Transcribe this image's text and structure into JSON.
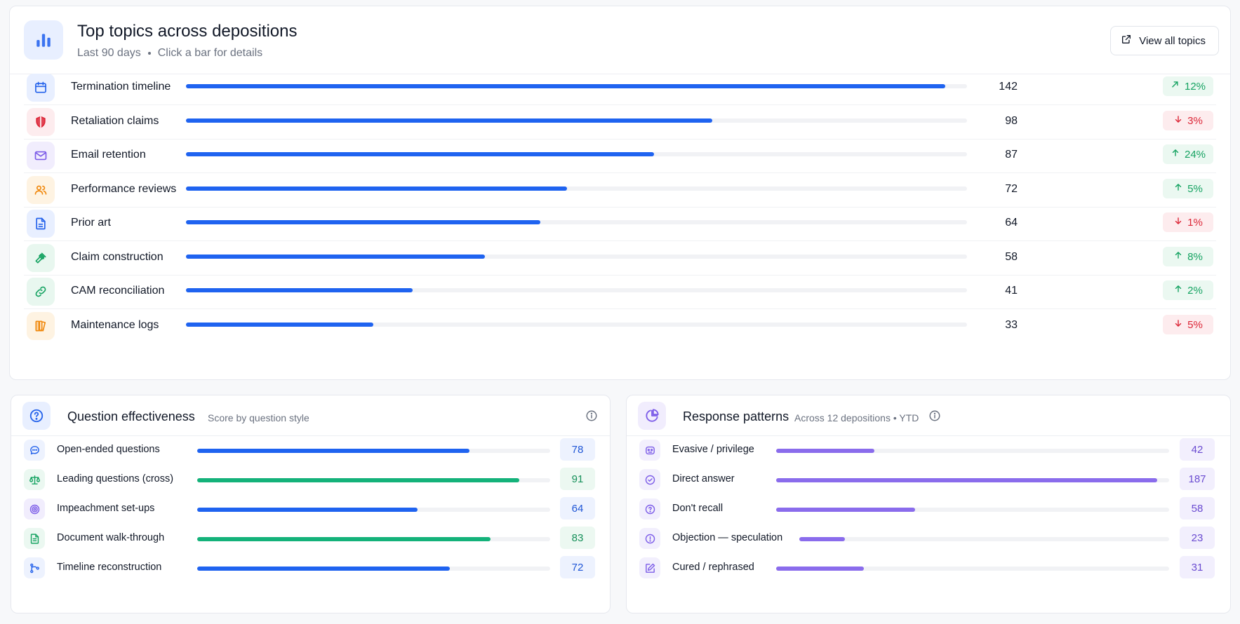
{
  "top": {
    "title": "Top topics across depositions",
    "period": "Last 90 days",
    "hint": "Click a bar for details",
    "view_all_label": "View all topics",
    "icon": "bar-chart-icon",
    "max_value": 142,
    "topics": [
      {
        "label": "Termination timeline",
        "count": 142,
        "trend": "12%",
        "direction": "up",
        "icon": "calendar-icon",
        "icon_color": "#2563eb",
        "icon_bg": "#e8efff",
        "bar_fraction": 0.972
      },
      {
        "label": "Retaliation claims",
        "count": 98,
        "trend": "3%",
        "direction": "down",
        "icon": "shield-icon",
        "icon_color": "#dc2637",
        "icon_bg": "#fdecee",
        "bar_fraction": 0.674
      },
      {
        "label": "Email retention",
        "count": 87,
        "trend": "24%",
        "direction": "up",
        "icon": "mail-icon",
        "icon_color": "#7c5ce8",
        "icon_bg": "#f1edfd",
        "bar_fraction": 0.599
      },
      {
        "label": "Performance reviews",
        "count": 72,
        "trend": "5%",
        "direction": "up",
        "icon": "users-icon",
        "icon_color": "#f0880c",
        "icon_bg": "#fef3e2",
        "bar_fraction": 0.488
      },
      {
        "label": "Prior art",
        "count": 64,
        "trend": "1%",
        "direction": "down",
        "icon": "document-icon",
        "icon_color": "#2563eb",
        "icon_bg": "#e8efff",
        "bar_fraction": 0.454
      },
      {
        "label": "Claim construction",
        "count": 58,
        "trend": "8%",
        "direction": "up",
        "icon": "gavel-icon",
        "icon_color": "#16a362",
        "icon_bg": "#e8f7ef",
        "bar_fraction": 0.383
      },
      {
        "label": "CAM reconciliation",
        "count": 41,
        "trend": "2%",
        "direction": "up",
        "icon": "link-icon",
        "icon_color": "#16a362",
        "icon_bg": "#e8f7ef",
        "bar_fraction": 0.29
      },
      {
        "label": "Maintenance logs",
        "count": 33,
        "trend": "5%",
        "direction": "down",
        "icon": "book-icon",
        "icon_color": "#f0880c",
        "icon_bg": "#fef3e2",
        "bar_fraction": 0.24
      }
    ]
  },
  "question_effectiveness": {
    "title": "Question effectiveness",
    "subtitle": "Score by question style",
    "icon": "question-circle-icon",
    "items": [
      {
        "label": "Open-ended questions",
        "value": "78",
        "score": 78,
        "color": "#1f63f0",
        "style": "blue",
        "icon": "chat-bubble-icon",
        "bar_fraction": 0.772
      },
      {
        "label": "Leading questions (cross)",
        "value": "91",
        "score": 91,
        "color": "#14b27a",
        "style": "green",
        "icon": "scale-icon",
        "bar_fraction": 0.913
      },
      {
        "label": "Impeachment set-ups",
        "value": "64",
        "score": 64,
        "color": "#1f63f0",
        "style": "blue",
        "icon": "target-icon",
        "bar_fraction": 0.625
      },
      {
        "label": "Document walk-through",
        "value": "83",
        "score": 83,
        "color": "#14b27a",
        "style": "green",
        "icon": "file-text-icon",
        "bar_fraction": 0.831
      },
      {
        "label": "Timeline reconstruction",
        "value": "72",
        "score": 72,
        "color": "#1f63f0",
        "style": "blue",
        "icon": "branch-icon",
        "bar_fraction": 0.715
      }
    ]
  },
  "response_patterns": {
    "title": "Response patterns",
    "subtitle": "Across 12 depositions • YTD",
    "icon": "pie-chart-icon",
    "max_value": 187,
    "items": [
      {
        "label": "Evasive / privilege",
        "value": "42",
        "count": 42,
        "icon": "mask-icon",
        "bar_fraction": 0.25
      },
      {
        "label": "Direct answer",
        "value": "187",
        "count": 187,
        "icon": "check-circle-icon",
        "bar_fraction": 0.97
      },
      {
        "label": "Don't recall",
        "value": "58",
        "count": 58,
        "icon": "question-circle-icon",
        "bar_fraction": 0.354
      },
      {
        "label": "Objection — speculation",
        "value": "23",
        "count": 23,
        "icon": "alert-circle-icon",
        "bar_fraction": 0.123
      },
      {
        "label": "Cured / rephrased",
        "value": "31",
        "count": 31,
        "icon": "edit-icon",
        "bar_fraction": 0.223
      }
    ],
    "bar_color": "#8a6cec"
  }
}
